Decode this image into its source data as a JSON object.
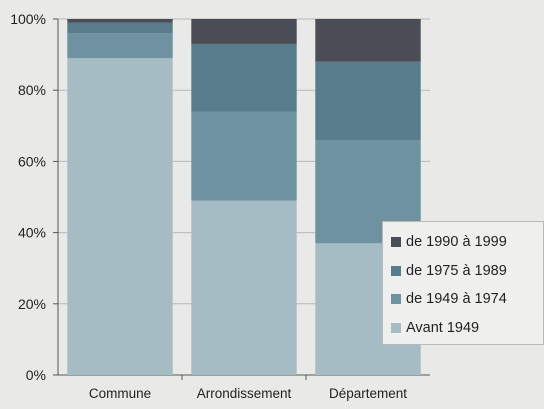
{
  "chart_data": {
    "type": "bar",
    "stacked": true,
    "percent": true,
    "categories": [
      "Commune",
      "Arrondissement",
      "Département"
    ],
    "series": [
      {
        "name": "Avant 1949",
        "values": [
          89,
          49,
          37
        ],
        "color": "#a5bcc5"
      },
      {
        "name": "de 1949 à 1974",
        "values": [
          7,
          25,
          29
        ],
        "color": "#6f92a0"
      },
      {
        "name": "de 1975 à 1989",
        "values": [
          3,
          19,
          22
        ],
        "color": "#587c8c"
      },
      {
        "name": "de 1990 à 1999",
        "values": [
          1,
          7,
          12
        ],
        "color": "#4a4d55"
      }
    ],
    "yticks": [
      "0%",
      "20%",
      "40%",
      "60%",
      "80%",
      "100%"
    ],
    "ylim": [
      0,
      100
    ],
    "grid": true,
    "legend_position": "right",
    "title": "",
    "xlabel": "",
    "ylabel": ""
  },
  "legend_order": [
    3,
    2,
    1,
    0
  ]
}
